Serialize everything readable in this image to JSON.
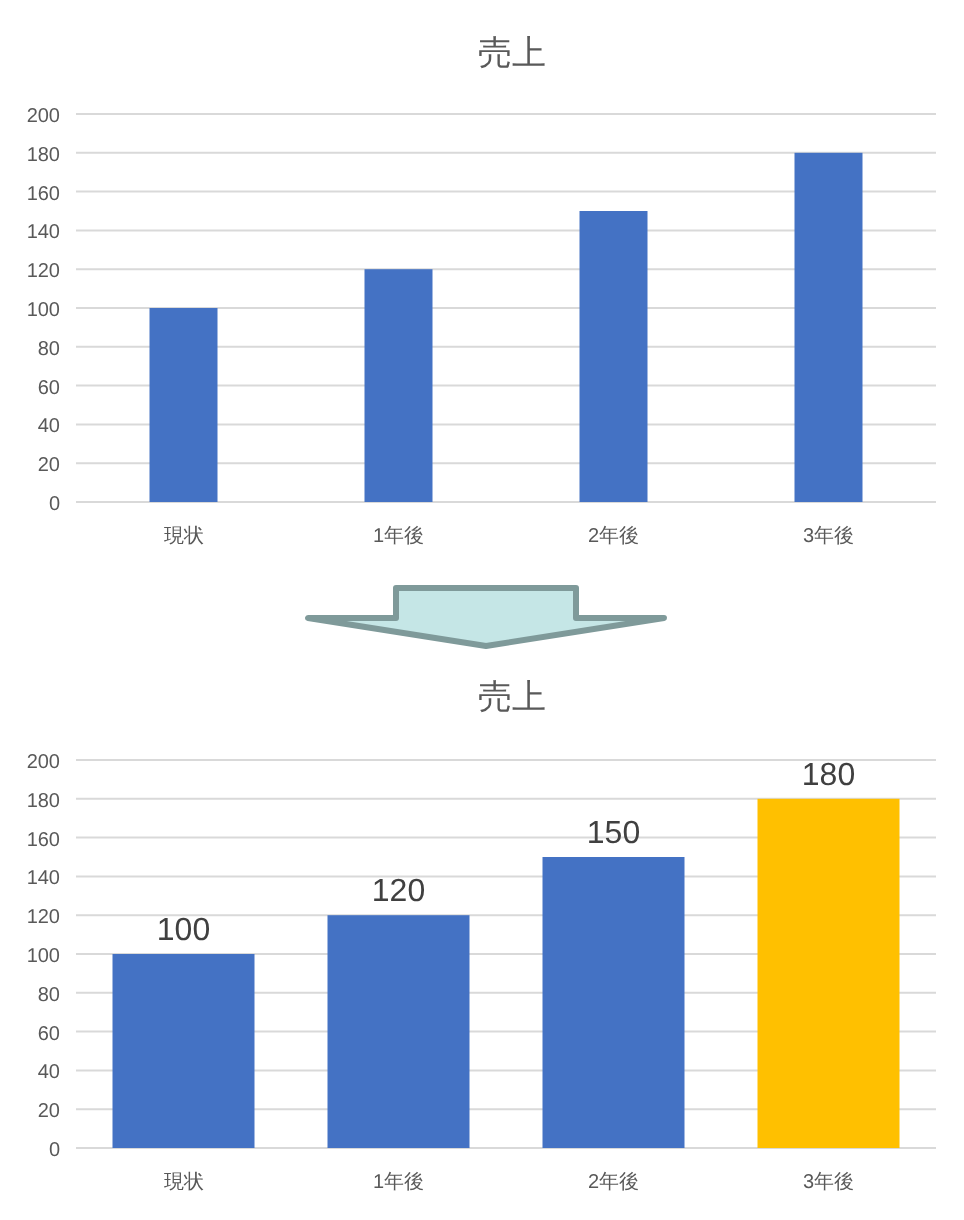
{
  "chart_data": [
    {
      "type": "bar",
      "title": "売上",
      "categories": [
        "現状",
        "1年後",
        "2年後",
        "3年後"
      ],
      "values": [
        100,
        120,
        150,
        180
      ],
      "color": "#4472c4",
      "ylim": [
        0,
        200
      ],
      "yticks": [
        0,
        20,
        40,
        60,
        80,
        100,
        120,
        140,
        160,
        180,
        200
      ],
      "grid": "y"
    },
    {
      "type": "bar",
      "title": "売上",
      "categories": [
        "現状",
        "1年後",
        "2年後",
        "3年後"
      ],
      "values": [
        100,
        120,
        150,
        180
      ],
      "colors": [
        "#4472c4",
        "#4472c4",
        "#4472c4",
        "#ffc000"
      ],
      "ylim": [
        0,
        200
      ],
      "yticks": [
        0,
        20,
        40,
        60,
        80,
        100,
        120,
        140,
        160,
        180,
        200
      ],
      "grid": "y",
      "data_labels": true
    }
  ]
}
